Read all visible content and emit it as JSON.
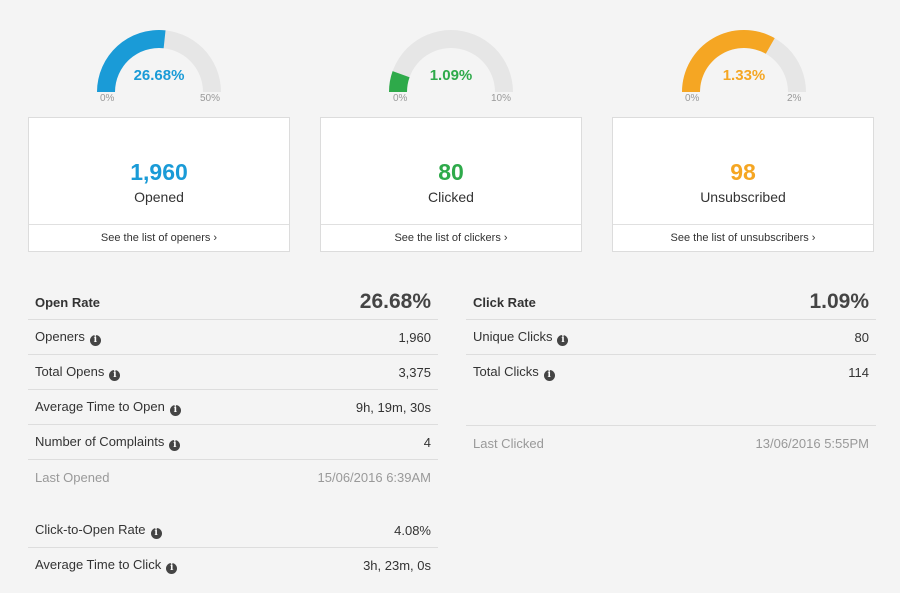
{
  "gauges": [
    {
      "value_label": "26.68%",
      "min": "0%",
      "max": "50%",
      "fraction": 0.5336,
      "color": "#1a9bd7"
    },
    {
      "value_label": "1.09%",
      "min": "0%",
      "max": "10%",
      "fraction": 0.109,
      "color": "#2eaa4a"
    },
    {
      "value_label": "1.33%",
      "min": "0%",
      "max": "2%",
      "fraction": 0.665,
      "color": "#f5a623"
    }
  ],
  "cards": [
    {
      "number": "1,960",
      "label": "Opened",
      "link": "See the list of openers ›",
      "color": "#1a9bd7"
    },
    {
      "number": "80",
      "label": "Clicked",
      "link": "See the list of clickers ›",
      "color": "#2eaa4a"
    },
    {
      "number": "98",
      "label": "Unsubscribed",
      "link": "See the list of unsubscribers ›",
      "color": "#f5a623"
    }
  ],
  "open_panel": {
    "title": "Open Rate",
    "value": "26.68%",
    "rows": [
      {
        "label": "Openers",
        "value": "1,960"
      },
      {
        "label": "Total Opens",
        "value": "3,375"
      },
      {
        "label": "Average Time to Open",
        "value": "9h, 19m, 30s"
      },
      {
        "label": "Number of Complaints",
        "value": "4"
      }
    ],
    "last_label": "Last Opened",
    "last_value": "15/06/2016 6:39AM",
    "extra_rows": [
      {
        "label": "Click-to-Open Rate",
        "value": "4.08%"
      },
      {
        "label": "Average Time to Click",
        "value": "3h, 23m, 0s"
      }
    ]
  },
  "click_panel": {
    "title": "Click Rate",
    "value": "1.09%",
    "rows": [
      {
        "label": "Unique Clicks",
        "value": "80"
      },
      {
        "label": "Total Clicks",
        "value": "114"
      }
    ],
    "last_label": "Last Clicked",
    "last_value": "13/06/2016 5:55PM"
  },
  "icons": {
    "info": "info-icon"
  }
}
